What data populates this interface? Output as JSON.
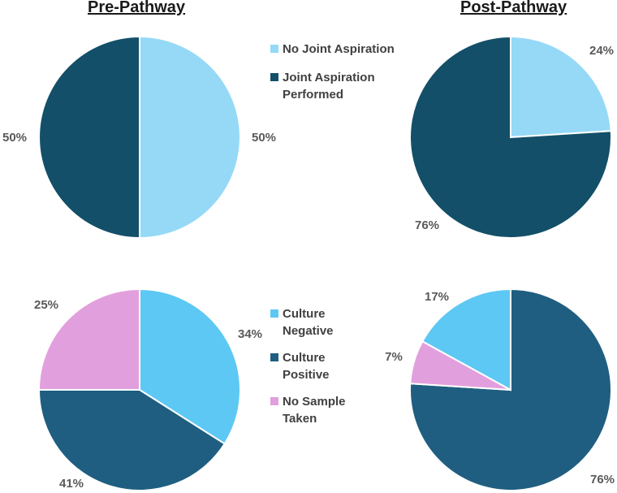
{
  "titles": {
    "pre": "Pre-Pathway",
    "post": "Post-Pathway"
  },
  "legends": {
    "aspiration": [
      {
        "label": "No Joint Aspiration",
        "color": "#95D9F7"
      },
      {
        "label": "Joint Aspiration Performed",
        "color": "#134F68"
      }
    ],
    "culture": [
      {
        "label": "Culture Negative",
        "color": "#5DC8F3"
      },
      {
        "label": "Culture Positive",
        "color": "#1F5E80"
      },
      {
        "label": "No Sample Taken",
        "color": "#E29FDD"
      }
    ]
  },
  "chart_data": [
    {
      "type": "pie",
      "title": "Pre-Pathway",
      "group": "Joint Aspiration",
      "slices": [
        {
          "label": "No Joint Aspiration",
          "value": 50,
          "display": "50%",
          "color": "#95D9F7"
        },
        {
          "label": "Joint Aspiration Performed",
          "value": 50,
          "display": "50%",
          "color": "#134F68"
        }
      ]
    },
    {
      "type": "pie",
      "title": "Post-Pathway",
      "group": "Joint Aspiration",
      "slices": [
        {
          "label": "No Joint Aspiration",
          "value": 24,
          "display": "24%",
          "color": "#95D9F7"
        },
        {
          "label": "Joint Aspiration Performed",
          "value": 76,
          "display": "76%",
          "color": "#134F68"
        }
      ]
    },
    {
      "type": "pie",
      "title": "Pre-Pathway",
      "group": "Culture Result",
      "slices": [
        {
          "label": "Culture Negative",
          "value": 34,
          "display": "34%",
          "color": "#5DC8F3"
        },
        {
          "label": "Culture Positive",
          "value": 41,
          "display": "41%",
          "color": "#1F5E80"
        },
        {
          "label": "No Sample Taken",
          "value": 25,
          "display": "25%",
          "color": "#E29FDD"
        }
      ]
    },
    {
      "type": "pie",
      "title": "Post-Pathway",
      "group": "Culture Result",
      "slices": [
        {
          "label": "Culture Positive",
          "value": 76,
          "display": "76%",
          "color": "#1F5E80"
        },
        {
          "label": "No Sample Taken",
          "value": 7,
          "display": "7%",
          "color": "#E29FDD"
        },
        {
          "label": "Culture Negative",
          "value": 17,
          "display": "17%",
          "color": "#5DC8F3"
        }
      ]
    }
  ]
}
